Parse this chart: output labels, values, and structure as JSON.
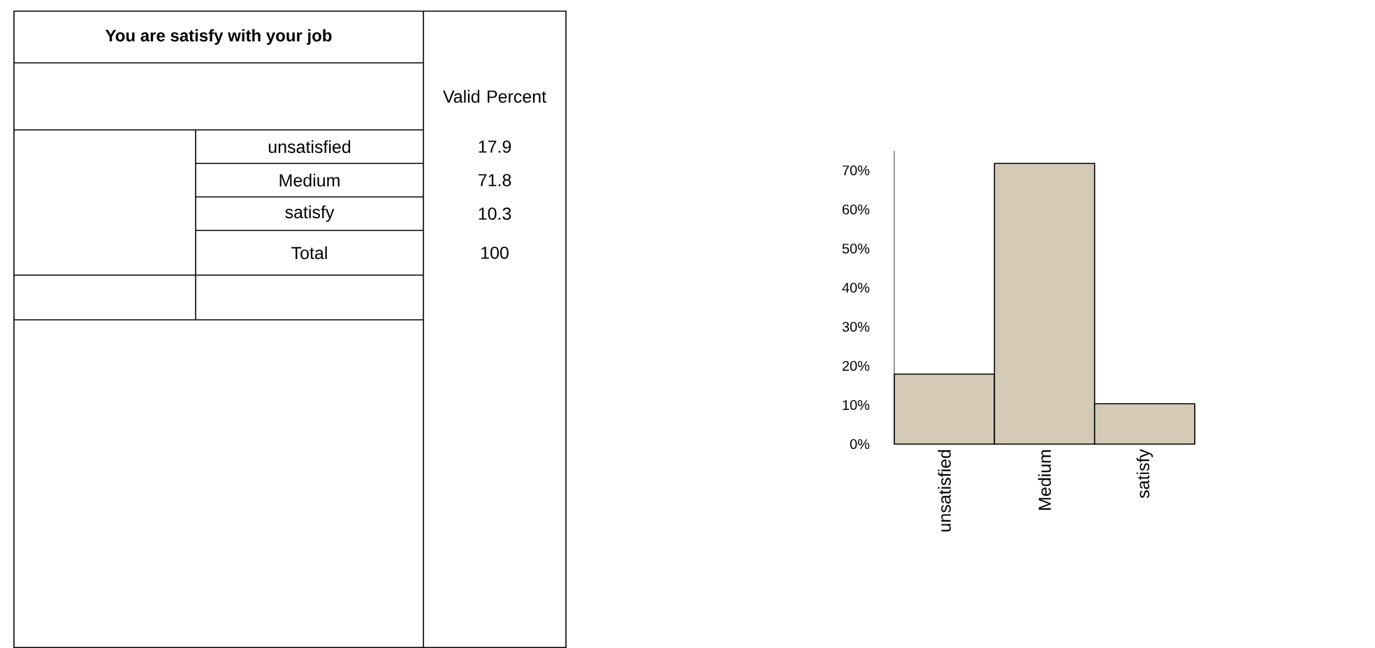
{
  "chart_data": {
    "type": "bar",
    "title": "You  are satisfy with your job",
    "categories": [
      "unsatisfied",
      "Medium",
      "satisfy"
    ],
    "values": [
      17.9,
      71.8,
      10.3
    ],
    "color": "#d4cab5",
    "ylim": [
      0,
      75
    ],
    "yticks": [
      {
        "value": 0,
        "label": "0%"
      },
      {
        "value": 10,
        "label": "10%"
      },
      {
        "value": 20,
        "label": "20%"
      },
      {
        "value": 30,
        "label": "30%"
      },
      {
        "value": 40,
        "label": "40%"
      },
      {
        "value": 50,
        "label": "50%"
      },
      {
        "value": 60,
        "label": "60%"
      },
      {
        "value": 70,
        "label": "70%"
      }
    ],
    "annotations": [
      "Valid Percent",
      "17.9",
      "71.8",
      "10.3",
      "Total",
      "100"
    ]
  }
}
